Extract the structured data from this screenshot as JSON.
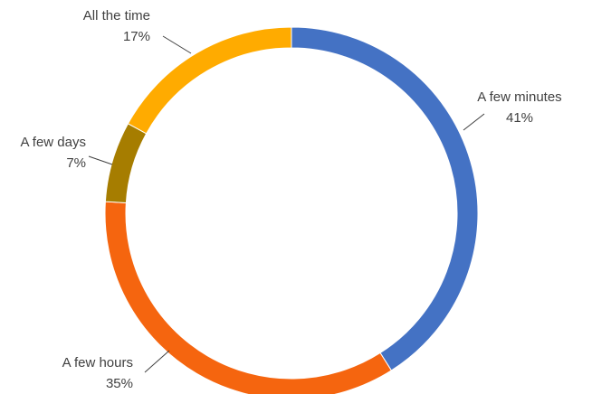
{
  "chart_data": {
    "type": "pie",
    "style": "donut",
    "title": "",
    "slices": [
      {
        "label": "A few minutes",
        "value": 41,
        "value_label": "41%",
        "color": "#4472C4"
      },
      {
        "label": "A few hours",
        "value": 35,
        "value_label": "35%",
        "color": "#F5650F"
      },
      {
        "label": "A few days",
        "value": 7,
        "value_label": "7%",
        "color": "#A67D00"
      },
      {
        "label": "All the time",
        "value": 17,
        "value_label": "17%",
        "color": "#FFAB00"
      }
    ],
    "legend": "none",
    "start_angle": "12 o'clock",
    "direction": "clockwise"
  }
}
